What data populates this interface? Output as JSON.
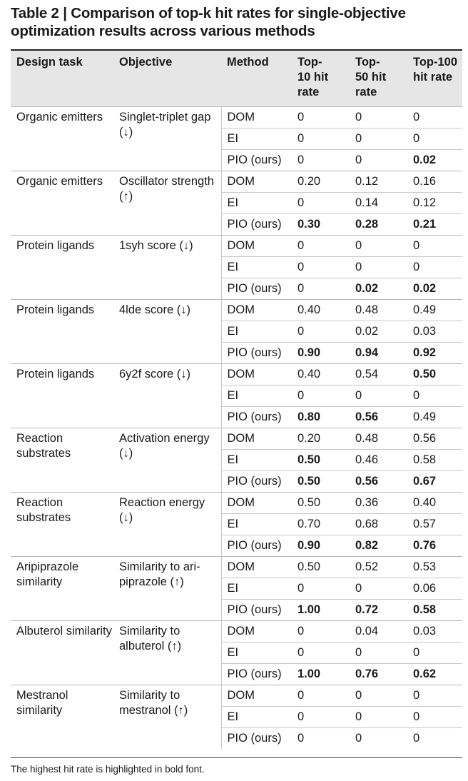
{
  "title": "Table 2 | Comparison of top-k hit rates for single-objective optimization results across various methods",
  "headers": [
    "Design task",
    "Objective",
    "Method",
    "Top-10 hit rate",
    "Top-50 hit rate",
    "Top-100 hit rate"
  ],
  "groups": [
    {
      "task": "Organic emitters",
      "objective": "Singlet-triplet gap (↓)",
      "rows": [
        {
          "method": "DOM",
          "v": [
            "0",
            "0",
            "0"
          ],
          "bold": [
            false,
            false,
            false
          ]
        },
        {
          "method": "EI",
          "v": [
            "0",
            "0",
            "0"
          ],
          "bold": [
            false,
            false,
            false
          ]
        },
        {
          "method": "PIO (ours)",
          "v": [
            "0",
            "0",
            "0.02"
          ],
          "bold": [
            false,
            false,
            true
          ]
        }
      ]
    },
    {
      "task": "Organic emitters",
      "objective": "Oscillator strength (↑)",
      "rows": [
        {
          "method": "DOM",
          "v": [
            "0.20",
            "0.12",
            "0.16"
          ],
          "bold": [
            false,
            false,
            false
          ]
        },
        {
          "method": "EI",
          "v": [
            "0",
            "0.14",
            "0.12"
          ],
          "bold": [
            false,
            false,
            false
          ]
        },
        {
          "method": "PIO (ours)",
          "v": [
            "0.30",
            "0.28",
            "0.21"
          ],
          "bold": [
            true,
            true,
            true
          ]
        }
      ]
    },
    {
      "task": "Protein ligands",
      "objective": "1syh score (↓)",
      "rows": [
        {
          "method": "DOM",
          "v": [
            "0",
            "0",
            "0"
          ],
          "bold": [
            false,
            false,
            false
          ]
        },
        {
          "method": "EI",
          "v": [
            "0",
            "0",
            "0"
          ],
          "bold": [
            false,
            false,
            false
          ]
        },
        {
          "method": "PIO (ours)",
          "v": [
            "0",
            "0.02",
            "0.02"
          ],
          "bold": [
            false,
            true,
            true
          ]
        }
      ]
    },
    {
      "task": "Protein ligands",
      "objective": "4lde score (↓)",
      "rows": [
        {
          "method": "DOM",
          "v": [
            "0.40",
            "0.48",
            "0.49"
          ],
          "bold": [
            false,
            false,
            false
          ]
        },
        {
          "method": "EI",
          "v": [
            "0",
            "0.02",
            "0.03"
          ],
          "bold": [
            false,
            false,
            false
          ]
        },
        {
          "method": "PIO (ours)",
          "v": [
            "0.90",
            "0.94",
            "0.92"
          ],
          "bold": [
            true,
            true,
            true
          ]
        }
      ]
    },
    {
      "task": "Protein ligands",
      "objective": "6y2f score (↓)",
      "rows": [
        {
          "method": "DOM",
          "v": [
            "0.40",
            "0.54",
            "0.50"
          ],
          "bold": [
            false,
            false,
            true
          ]
        },
        {
          "method": "EI",
          "v": [
            "0",
            "0",
            "0"
          ],
          "bold": [
            false,
            false,
            false
          ]
        },
        {
          "method": "PIO (ours)",
          "v": [
            "0.80",
            "0.56",
            "0.49"
          ],
          "bold": [
            true,
            true,
            false
          ]
        }
      ]
    },
    {
      "task": "Reaction substrates",
      "objective": "Activation energy (↓)",
      "rows": [
        {
          "method": "DOM",
          "v": [
            "0.20",
            "0.48",
            "0.56"
          ],
          "bold": [
            false,
            false,
            false
          ]
        },
        {
          "method": "EI",
          "v": [
            "0.50",
            "0.46",
            "0.58"
          ],
          "bold": [
            true,
            false,
            false
          ]
        },
        {
          "method": "PIO (ours)",
          "v": [
            "0.50",
            "0.56",
            "0.67"
          ],
          "bold": [
            true,
            true,
            true
          ]
        }
      ]
    },
    {
      "task": "Reaction substrates",
      "objective": "Reaction energy (↓)",
      "rows": [
        {
          "method": "DOM",
          "v": [
            "0.50",
            "0.36",
            "0.40"
          ],
          "bold": [
            false,
            false,
            false
          ]
        },
        {
          "method": "EI",
          "v": [
            "0.70",
            "0.68",
            "0.57"
          ],
          "bold": [
            false,
            false,
            false
          ]
        },
        {
          "method": "PIO (ours)",
          "v": [
            "0.90",
            "0.82",
            "0.76"
          ],
          "bold": [
            true,
            true,
            true
          ]
        }
      ]
    },
    {
      "task": "Aripiprazole similarity",
      "objective": "Similarity to ari-piprazole (↑)",
      "rows": [
        {
          "method": "DOM",
          "v": [
            "0.50",
            "0.52",
            "0.53"
          ],
          "bold": [
            false,
            false,
            false
          ]
        },
        {
          "method": "EI",
          "v": [
            "0",
            "0",
            "0.06"
          ],
          "bold": [
            false,
            false,
            false
          ]
        },
        {
          "method": "PIO (ours)",
          "v": [
            "1.00",
            "0.72",
            "0.58"
          ],
          "bold": [
            true,
            true,
            true
          ]
        }
      ]
    },
    {
      "task": "Albuterol similarity",
      "objective": "Similarity to albuterol (↑)",
      "rows": [
        {
          "method": "DOM",
          "v": [
            "0",
            "0.04",
            "0.03"
          ],
          "bold": [
            false,
            false,
            false
          ]
        },
        {
          "method": "EI",
          "v": [
            "0",
            "0",
            "0"
          ],
          "bold": [
            false,
            false,
            false
          ]
        },
        {
          "method": "PIO (ours)",
          "v": [
            "1.00",
            "0.76",
            "0.62"
          ],
          "bold": [
            true,
            true,
            true
          ]
        }
      ]
    },
    {
      "task": "Mestranol similarity",
      "objective": "Similarity to mestranol (↑)",
      "rows": [
        {
          "method": "DOM",
          "v": [
            "0",
            "0",
            "0"
          ],
          "bold": [
            false,
            false,
            false
          ]
        },
        {
          "method": "EI",
          "v": [
            "0",
            "0",
            "0"
          ],
          "bold": [
            false,
            false,
            false
          ]
        },
        {
          "method": "PIO (ours)",
          "v": [
            "0",
            "0",
            "0"
          ],
          "bold": [
            false,
            false,
            false
          ]
        }
      ]
    }
  ],
  "footnote": "The highest hit rate is highlighted in bold font."
}
